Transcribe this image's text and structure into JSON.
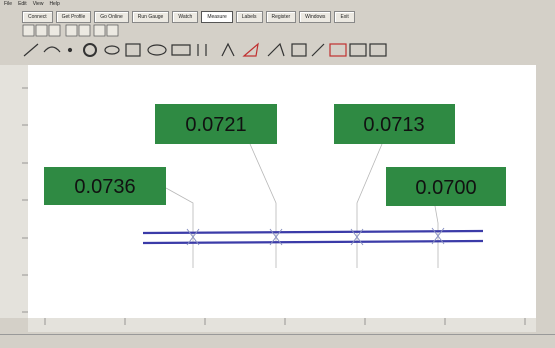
{
  "menu": [
    "File",
    "Edit",
    "View",
    "Help"
  ],
  "toolbar": [
    "Connect",
    "Get Profile",
    "Go Online",
    "Run Gauge",
    "Watch",
    "Measure",
    "Labels",
    "Register",
    "Windows",
    "Exit"
  ],
  "measurements": [
    "0.0736",
    "0.0721",
    "0.0713",
    "0.0700"
  ]
}
